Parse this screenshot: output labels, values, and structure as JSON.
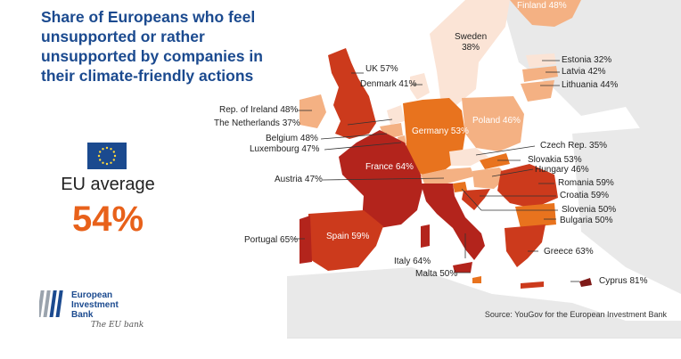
{
  "title_lines": [
    "Share of Europeans who feel",
    "unsupported or rather",
    "unsupported by companies in",
    "their climate-friendly actions"
  ],
  "eu_average_label": "EU average",
  "eu_average_value": "54%",
  "logo": {
    "line1": "European",
    "line2": "Investment",
    "line3": "Bank",
    "signature": "The EU bank"
  },
  "source": "Source: YouGov for the European Investment Bank",
  "countries": [
    {
      "name": "Finland",
      "value": 48,
      "label": "Finland 48%"
    },
    {
      "name": "Sweden",
      "value": 38,
      "label_line1": "Sweden",
      "label_line2": "38%"
    },
    {
      "name": "UK",
      "value": 57,
      "label": "UK 57%"
    },
    {
      "name": "Denmark",
      "value": 41,
      "label": "Denmark 41%"
    },
    {
      "name": "Estonia",
      "value": 32,
      "label": "Estonia 32%"
    },
    {
      "name": "Latvia",
      "value": 42,
      "label": "Latvia 42%"
    },
    {
      "name": "Lithuania",
      "value": 44,
      "label": "Lithuania 44%"
    },
    {
      "name": "Rep. of Ireland",
      "value": 48,
      "label": "Rep. of Ireland 48%"
    },
    {
      "name": "The Netherlands",
      "value": 37,
      "label": "The Netherlands 37%"
    },
    {
      "name": "Poland",
      "value": 46,
      "label": "Poland 46%"
    },
    {
      "name": "Germany",
      "value": 53,
      "label": "Germany 53%"
    },
    {
      "name": "Belgium",
      "value": 48,
      "label": "Belgium 48%"
    },
    {
      "name": "Luxembourg",
      "value": 47,
      "label": "Luxembourg 47%"
    },
    {
      "name": "Czech Rep.",
      "value": 35,
      "label": "Czech Rep. 35%"
    },
    {
      "name": "Slovakia",
      "value": 53,
      "label": "Slovakia 53%"
    },
    {
      "name": "France",
      "value": 64,
      "label": "France 64%"
    },
    {
      "name": "Hungary",
      "value": 46,
      "label": "Hungary 46%"
    },
    {
      "name": "Austria",
      "value": 47,
      "label": "Austria 47%"
    },
    {
      "name": "Romania",
      "value": 59,
      "label": "Romania 59%"
    },
    {
      "name": "Croatia",
      "value": 59,
      "label": "Croatia 59%"
    },
    {
      "name": "Slovenia",
      "value": 50,
      "label": "Slovenia 50%"
    },
    {
      "name": "Bulgaria",
      "value": 50,
      "label": "Bulgaria 50%"
    },
    {
      "name": "Spain",
      "value": 59,
      "label": "Spain 59%"
    },
    {
      "name": "Portugal",
      "value": 65,
      "label": "Portugal 65%"
    },
    {
      "name": "Greece",
      "value": 63,
      "label": "Greece 63%"
    },
    {
      "name": "Italy",
      "value": 64,
      "label": "Italy 64%"
    },
    {
      "name": "Malta",
      "value": 50,
      "label": "Malta 50%"
    },
    {
      "name": "Cyprus",
      "value": 81,
      "label": "Cyprus 81%"
    }
  ],
  "colors": {
    "title": "#1b4a8f",
    "eu_average": "#e8611a",
    "very_light": "#f9dccd",
    "light": "#f4b183",
    "medium": "#e8731e",
    "dark": "#cc3a1c",
    "darker": "#b3241c",
    "darkest": "#7e1a18",
    "background_land": "#e9e9e9"
  }
}
